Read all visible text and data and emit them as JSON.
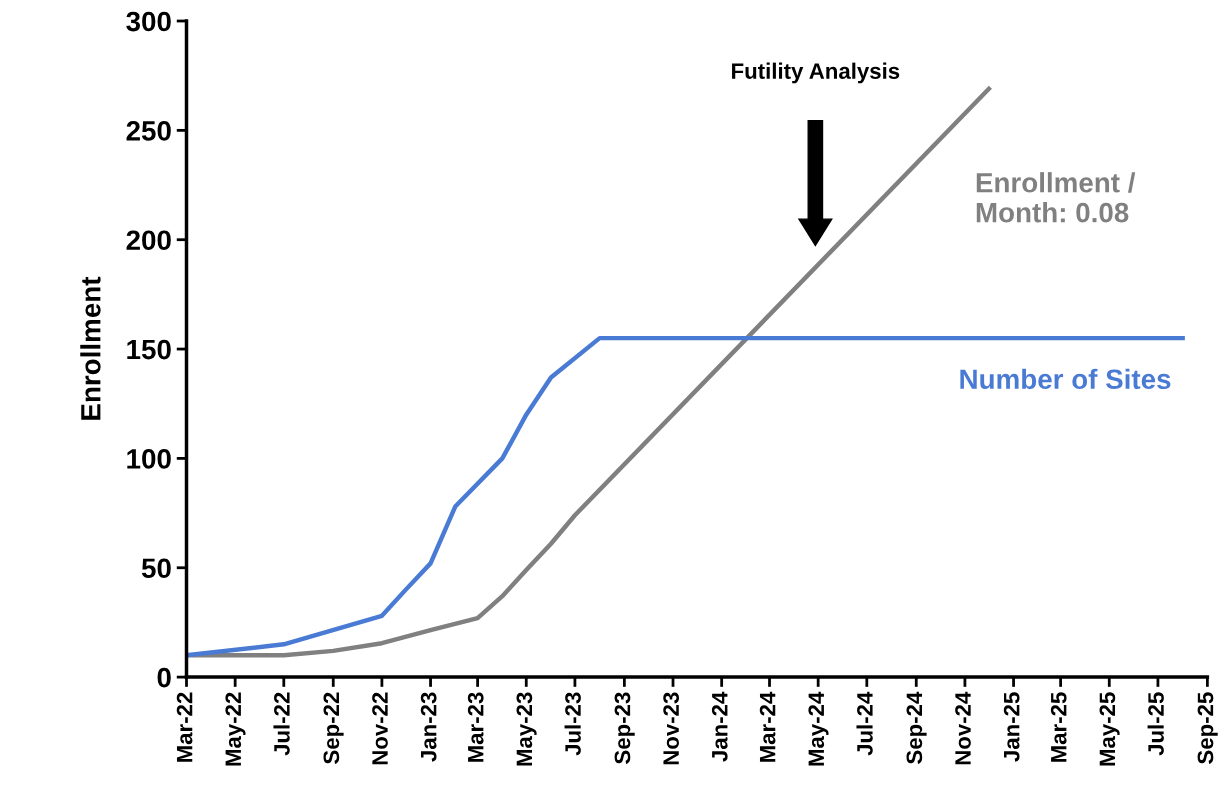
{
  "chart_data": {
    "type": "line",
    "ylabel": "Enrollment",
    "series": [
      {
        "name": "Enrollment /\nMonth: 0.08",
        "color": "#808080",
        "x": [
          "2022-03",
          "2022-05",
          "2022-07",
          "2022-09",
          "2022-11",
          "2023-01",
          "2023-03",
          "2023-04",
          "2023-05",
          "2023-06",
          "2023-07",
          "2024-12"
        ],
        "values": [
          10,
          10,
          10,
          12,
          15.5,
          21.5,
          27,
          37,
          49,
          61,
          74,
          269
        ]
      },
      {
        "name": "Number of Sites",
        "color": "#4a7bd4",
        "x": [
          "2022-03",
          "2022-07",
          "2022-11",
          "2022-12",
          "2023-01",
          "2023-02",
          "2023-04",
          "2023-05",
          "2023-06",
          "2023-08",
          "2025-08"
        ],
        "values": [
          10,
          15,
          28,
          40,
          52,
          78,
          100,
          120,
          137,
          155,
          155
        ]
      }
    ],
    "annotations": [
      "Futility Analysis"
    ],
    "ylim": [
      0,
      300
    ],
    "yticks": [
      0,
      50,
      100,
      150,
      200,
      250,
      300
    ],
    "xlim": [
      "2022-03",
      "2025-09"
    ],
    "xticks": [
      {
        "value": "2022-03",
        "label": "Mar-22"
      },
      {
        "value": "2022-05",
        "label": "May-22"
      },
      {
        "value": "2022-07",
        "label": "Jul-22"
      },
      {
        "value": "2022-09",
        "label": "Sep-22"
      },
      {
        "value": "2022-11",
        "label": "Nov-22"
      },
      {
        "value": "2023-01",
        "label": "Jan-23"
      },
      {
        "value": "2023-03",
        "label": "Mar-23"
      },
      {
        "value": "2023-05",
        "label": "May-23"
      },
      {
        "value": "2023-07",
        "label": "Jul-23"
      },
      {
        "value": "2023-09",
        "label": "Sep-23"
      },
      {
        "value": "2023-11",
        "label": "Nov-23"
      },
      {
        "value": "2024-01",
        "label": "Jan-24"
      },
      {
        "value": "2024-03",
        "label": "Mar-24"
      },
      {
        "value": "2024-05",
        "label": "May-24"
      },
      {
        "value": "2024-07",
        "label": "Jul-24"
      },
      {
        "value": "2024-09",
        "label": "Sep-24"
      },
      {
        "value": "2024-11",
        "label": "Nov-24"
      },
      {
        "value": "2025-01",
        "label": "Jan-25"
      },
      {
        "value": "2025-03",
        "label": "Mar-25"
      },
      {
        "value": "2025-05",
        "label": "May-25"
      },
      {
        "value": "2025-07",
        "label": "Jul-25"
      },
      {
        "value": "2025-09",
        "label": "Sep-25"
      }
    ],
    "grid": false,
    "legend": false,
    "marker": "none",
    "line_style": "solid"
  }
}
